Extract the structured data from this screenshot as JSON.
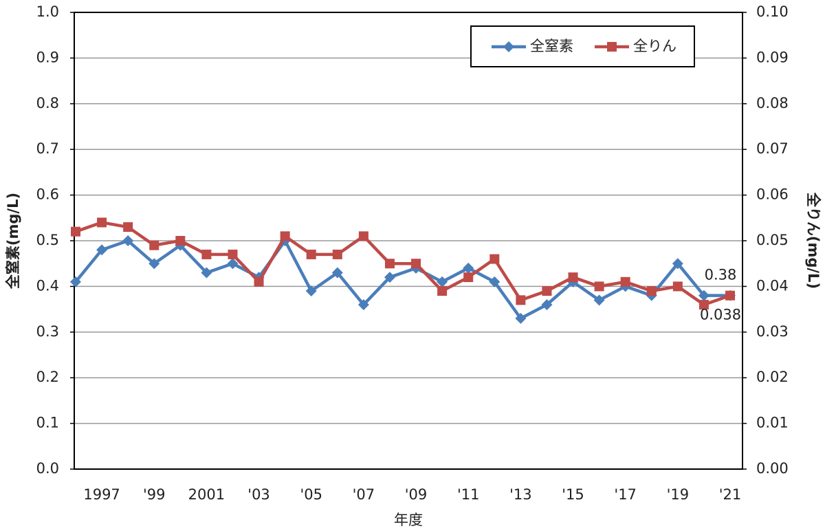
{
  "chart_data": {
    "type": "line",
    "categories": [
      null,
      "1997",
      null,
      "'99",
      null,
      "2001",
      null,
      "'03",
      null,
      "'05",
      null,
      "'07",
      null,
      "'09",
      null,
      "'11",
      null,
      "'13",
      null,
      "'15",
      null,
      "'17",
      null,
      "'19",
      null,
      "'21"
    ],
    "xlabel": "年度",
    "ylabel": "全窒素(mg/L)",
    "y2label": "全りん(mg/L)",
    "ylim": [
      0,
      1.0
    ],
    "yticks": [
      {
        "value": 0,
        "label": "0.0"
      },
      0.1,
      0.2,
      0.3,
      0.4,
      0.5,
      0.6,
      0.7,
      0.8,
      0.9,
      {
        "value": 1.0,
        "label": "1.0"
      }
    ],
    "y2lim": [
      0,
      0.1
    ],
    "y2ticks": [
      {
        "value": 0,
        "label": "0.00"
      },
      0.01,
      0.02,
      0.03,
      0.04,
      0.05,
      0.06,
      0.07,
      0.08,
      0.09,
      {
        "value": 0.1,
        "label": "0.10"
      }
    ],
    "grid": true,
    "legend": "top-right",
    "series": [
      {
        "name": "全窒素",
        "color": "#4a7ebb",
        "marker": "diamond",
        "values": [
          0.41,
          0.48,
          0.5,
          0.45,
          0.49,
          0.43,
          0.45,
          0.42,
          0.5,
          0.39,
          0.43,
          0.36,
          0.42,
          0.44,
          0.41,
          0.44,
          0.41,
          0.33,
          0.36,
          0.41,
          0.37,
          0.4,
          0.38,
          0.45,
          0.38,
          0.38
        ]
      },
      {
        "name": "全りん",
        "color": "#be4b48",
        "marker": "square",
        "axis": "y2",
        "values": [
          0.052,
          0.054,
          0.053,
          0.049,
          0.05,
          0.047,
          0.047,
          0.041,
          0.051,
          0.047,
          0.047,
          0.051,
          0.045,
          0.045,
          0.039,
          0.042,
          0.046,
          0.037,
          0.039,
          0.042,
          0.04,
          0.041,
          0.039,
          0.04,
          0.036,
          0.038
        ]
      }
    ]
  }
}
